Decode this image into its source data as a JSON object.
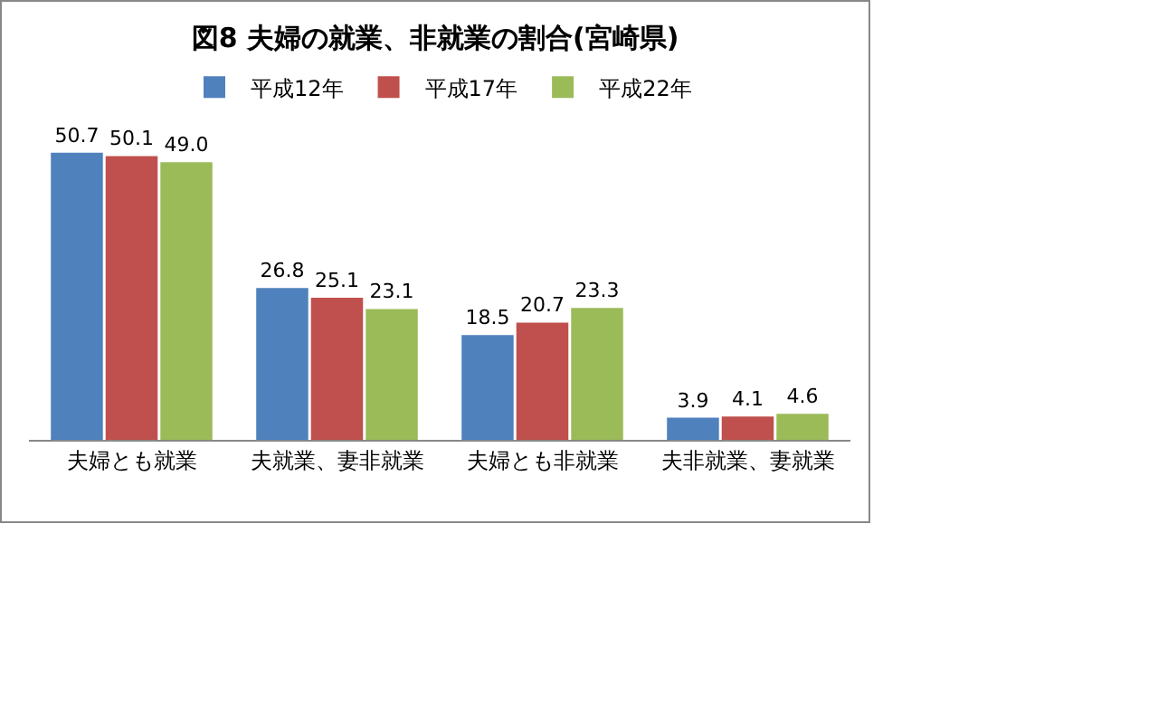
{
  "chart_data": {
    "type": "bar",
    "title": "図8 夫婦の就業、非就業の割合(宮崎県)",
    "categories": [
      "夫婦とも就業",
      "夫就業、妻非就業",
      "夫婦とも非就業",
      "夫非就業、妻就業"
    ],
    "series": [
      {
        "name": "平成12年",
        "color": "#4f81bd",
        "values": [
          50.7,
          26.8,
          18.5,
          3.9
        ],
        "value_labels": [
          "50.7",
          "26.8",
          "18.5",
          "3.9"
        ]
      },
      {
        "name": "平成17年",
        "color": "#c0504d",
        "values": [
          50.1,
          25.1,
          20.7,
          4.1
        ],
        "value_labels": [
          "50.1",
          "25.1",
          "20.7",
          "4.1"
        ]
      },
      {
        "name": "平成22年",
        "color": "#9bbb59",
        "values": [
          49.0,
          23.1,
          23.3,
          4.6
        ],
        "value_labels": [
          "49.0",
          "23.1",
          "23.3",
          "4.6"
        ]
      }
    ],
    "grid": false,
    "legend": "top",
    "tick_labels": "x"
  }
}
